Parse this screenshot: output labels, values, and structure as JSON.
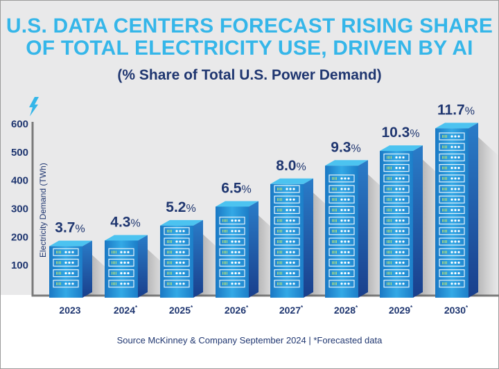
{
  "title_line1": "U.S. DATA CENTERS FORECAST RISING SHARE",
  "title_line2": "OF TOTAL ELECTRICITY USE, DRIVEN BY AI",
  "subtitle": "(% Share of Total U.S. Power Demand)",
  "source": "Source McKinney & Company September 2024 | *Forecasted data",
  "colors": {
    "title": "#35b6e9",
    "text": "#1f3670",
    "bar_front": "#1f8fd6",
    "bar_side": "#1c4f9c",
    "bar_top": "#4cc3f0",
    "background": "#e9e9ea"
  },
  "icons": {
    "axis_top": "lightning-bolt-icon"
  },
  "chart_data": {
    "type": "bar",
    "ylabel": "Electricity Demand (TWh)",
    "ylim": [
      0,
      600
    ],
    "yticks": [
      100,
      200,
      300,
      400,
      500,
      600
    ],
    "categories": [
      "2023",
      "2024",
      "2025",
      "2026",
      "2027",
      "2028",
      "2029",
      "2030"
    ],
    "forecast_marker": "*",
    "forecasted": [
      false,
      true,
      true,
      true,
      true,
      true,
      true,
      true
    ],
    "values": [
      165,
      185,
      238,
      305,
      385,
      450,
      502,
      582
    ],
    "share_labels": [
      "3.7",
      "4.3",
      "5.2",
      "6.5",
      "8.0",
      "9.3",
      "10.3",
      "11.7"
    ],
    "share_unit": "%",
    "grid": false
  }
}
